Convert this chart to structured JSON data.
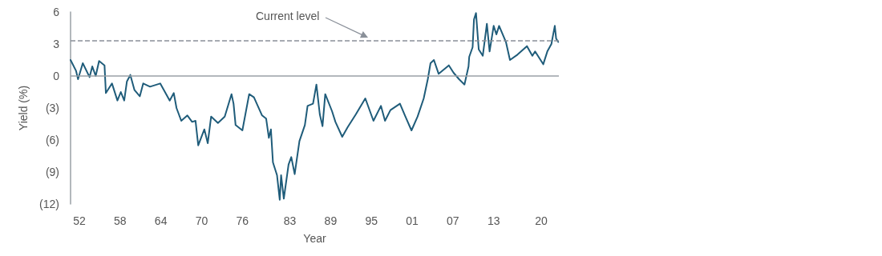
{
  "chart_data": {
    "type": "line",
    "xlabel": "Year",
    "ylabel": "Yield (%)",
    "x": [
      1950.7,
      1951.5,
      1951.8,
      1952.5,
      1953.5,
      1953.9,
      1954.4,
      1954.9,
      1955.7,
      1955.9,
      1956.8,
      1957.6,
      1958.1,
      1958.6,
      1959.0,
      1959.5,
      1960.1,
      1960.9,
      1961.4,
      1962.4,
      1963.9,
      1964.6,
      1965.3,
      1965.9,
      1966.3,
      1967.0,
      1967.9,
      1968.6,
      1969.1,
      1969.5,
      1970.4,
      1970.9,
      1971.4,
      1972.4,
      1973.4,
      1974.4,
      1974.7,
      1975.0,
      1976.0,
      1977.0,
      1977.7,
      1978.9,
      1979.5,
      1979.9,
      1980.2,
      1980.5,
      1981.1,
      1981.5,
      1981.7,
      1982.1,
      1982.8,
      1983.2,
      1983.7,
      1984.4,
      1985.2,
      1985.6,
      1986.4,
      1986.9,
      1987.4,
      1987.8,
      1988.2,
      1989.2,
      1989.7,
      1990.7,
      1991.5,
      1992.7,
      1994.1,
      1995.3,
      1996.4,
      1997.0,
      1997.8,
      1999.2,
      2000.0,
      2000.9,
      2001.8,
      2002.7,
      2003.3,
      2003.7,
      2004.2,
      2004.9,
      2006.4,
      2007.1,
      2007.9,
      2008.7,
      2009.3,
      2009.4,
      2009.9,
      2010.1,
      2010.4,
      2010.8,
      2011.4,
      2012.0,
      2012.4,
      2013.0,
      2013.4,
      2013.8,
      2014.8,
      2015.4,
      2016.5,
      2017.9,
      2018.7,
      2019.1,
      2020.3,
      2020.9,
      2021.5,
      2022.0,
      2022.2,
      2022.5
    ],
    "series": [
      {
        "color": "#1f5c7a",
        "values": [
          1.5,
          0.5,
          -0.3,
          1.2,
          -0.1,
          0.9,
          0.0,
          1.4,
          1.0,
          -1.6,
          -0.7,
          -2.3,
          -1.5,
          -2.3,
          -0.5,
          0.1,
          -1.3,
          -1.9,
          -0.7,
          -1.0,
          -0.7,
          -1.5,
          -2.3,
          -1.6,
          -3.0,
          -4.2,
          -3.7,
          -4.3,
          -4.2,
          -6.5,
          -5.0,
          -6.3,
          -3.8,
          -4.4,
          -3.8,
          -1.7,
          -2.6,
          -4.6,
          -5.1,
          -1.7,
          -2.0,
          -3.7,
          -4.0,
          -5.8,
          -5.0,
          -8.1,
          -9.3,
          -11.6,
          -9.3,
          -11.5,
          -8.3,
          -7.6,
          -9.2,
          -6.1,
          -4.6,
          -2.8,
          -2.6,
          -0.8,
          -3.6,
          -4.7,
          -1.7,
          -3.3,
          -4.3,
          -5.7,
          -4.8,
          -3.6,
          -2.1,
          -4.2,
          -2.8,
          -4.2,
          -3.2,
          -2.6,
          -3.8,
          -5.1,
          -3.8,
          -2.1,
          -0.3,
          1.2,
          1.5,
          0.2,
          1.0,
          0.3,
          -0.3,
          -0.8,
          0.9,
          1.8,
          2.7,
          5.3,
          5.9,
          2.5,
          1.9,
          4.9,
          2.3,
          4.7,
          3.9,
          4.7,
          3.2,
          1.5,
          2.0,
          2.8,
          1.9,
          2.3,
          1.1,
          2.3,
          3.0,
          4.7,
          3.5,
          3.2
        ]
      }
    ],
    "xlim": [
      1950.7,
      2022.6
    ],
    "xticks": [
      {
        "value": 1952,
        "label": "52"
      },
      {
        "value": 1958,
        "label": "58"
      },
      {
        "value": 1964,
        "label": "64"
      },
      {
        "value": 1970,
        "label": "70"
      },
      {
        "value": 1976,
        "label": "76"
      },
      {
        "value": 1983,
        "label": "83"
      },
      {
        "value": 1989,
        "label": "89"
      },
      {
        "value": 1995,
        "label": "95"
      },
      {
        "value": 2001,
        "label": "01"
      },
      {
        "value": 2007,
        "label": "07"
      },
      {
        "value": 2013,
        "label": "13"
      },
      {
        "value": 2020,
        "label": "20"
      }
    ],
    "ylim": [
      -12,
      6
    ],
    "yticks": [
      {
        "value": -12,
        "label": "(12)"
      },
      {
        "value": -9,
        "label": "(9)"
      },
      {
        "value": -6,
        "label": "(6)"
      },
      {
        "value": -3,
        "label": "(3)"
      },
      0,
      3,
      6
    ],
    "ref_lines": [
      {
        "axis": "y",
        "value": 3.3,
        "color": "#8a9099",
        "line_style": "dashed"
      },
      {
        "axis": "y",
        "value": 0,
        "color": "#9aa0a6",
        "line_style": "solid"
      }
    ],
    "annotations": [
      "Current level"
    ],
    "grid": false,
    "marker": "none",
    "line_style": "solid"
  }
}
